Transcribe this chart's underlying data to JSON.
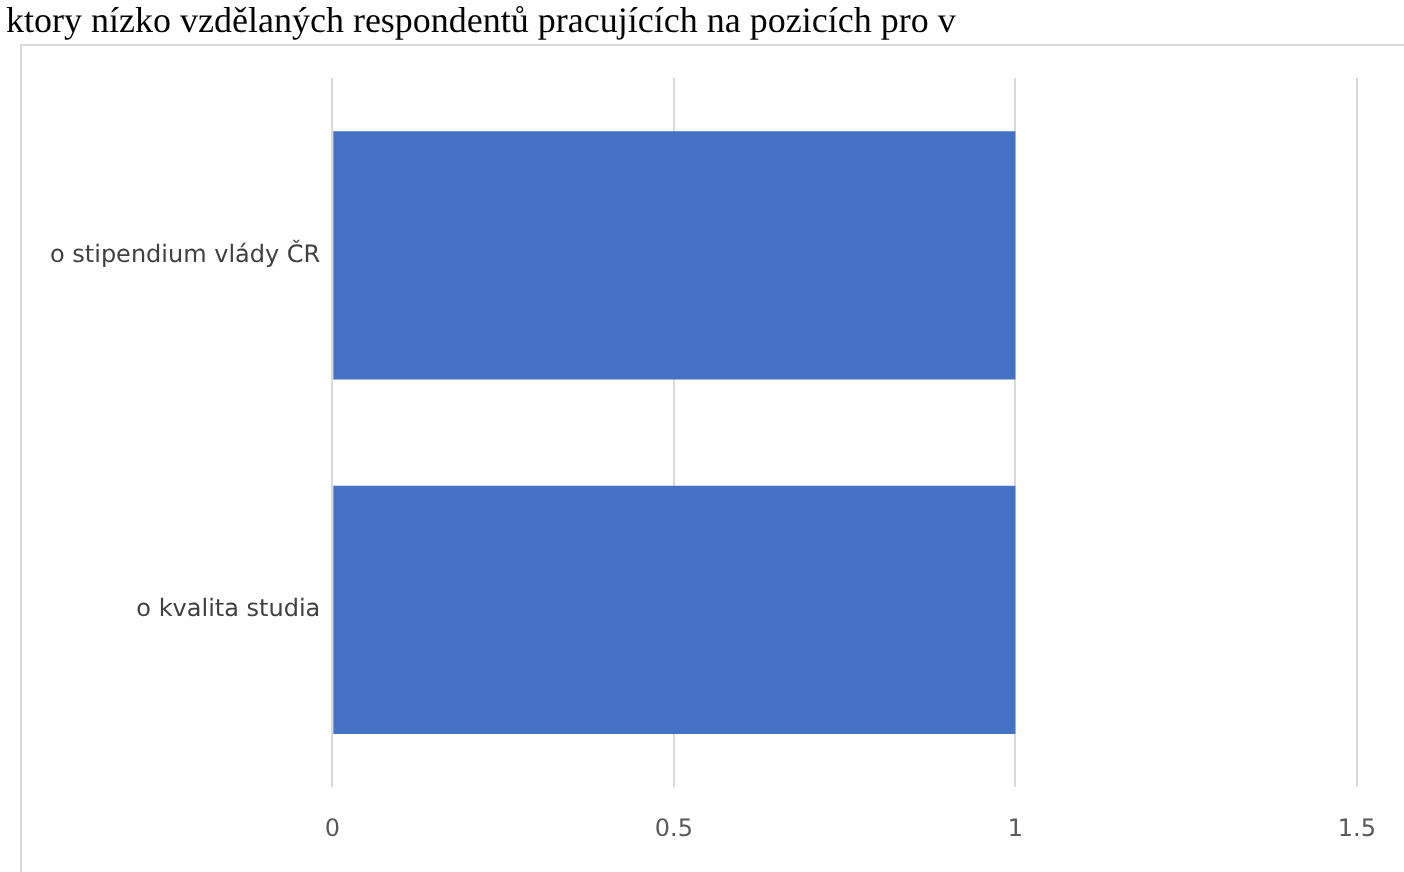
{
  "chart_data": {
    "type": "bar",
    "orientation": "horizontal",
    "title": "ktory nízko vzdělaných respondentů pracujících na pozicích pro v",
    "categories": [
      "o stipendium vlády ČR",
      "o kvalita studia"
    ],
    "values": [
      1,
      1
    ],
    "color": "#4472c4",
    "xlim": [
      0,
      1.5
    ],
    "xticks": [
      0,
      0.5,
      1,
      1.5
    ],
    "grid": "x"
  }
}
